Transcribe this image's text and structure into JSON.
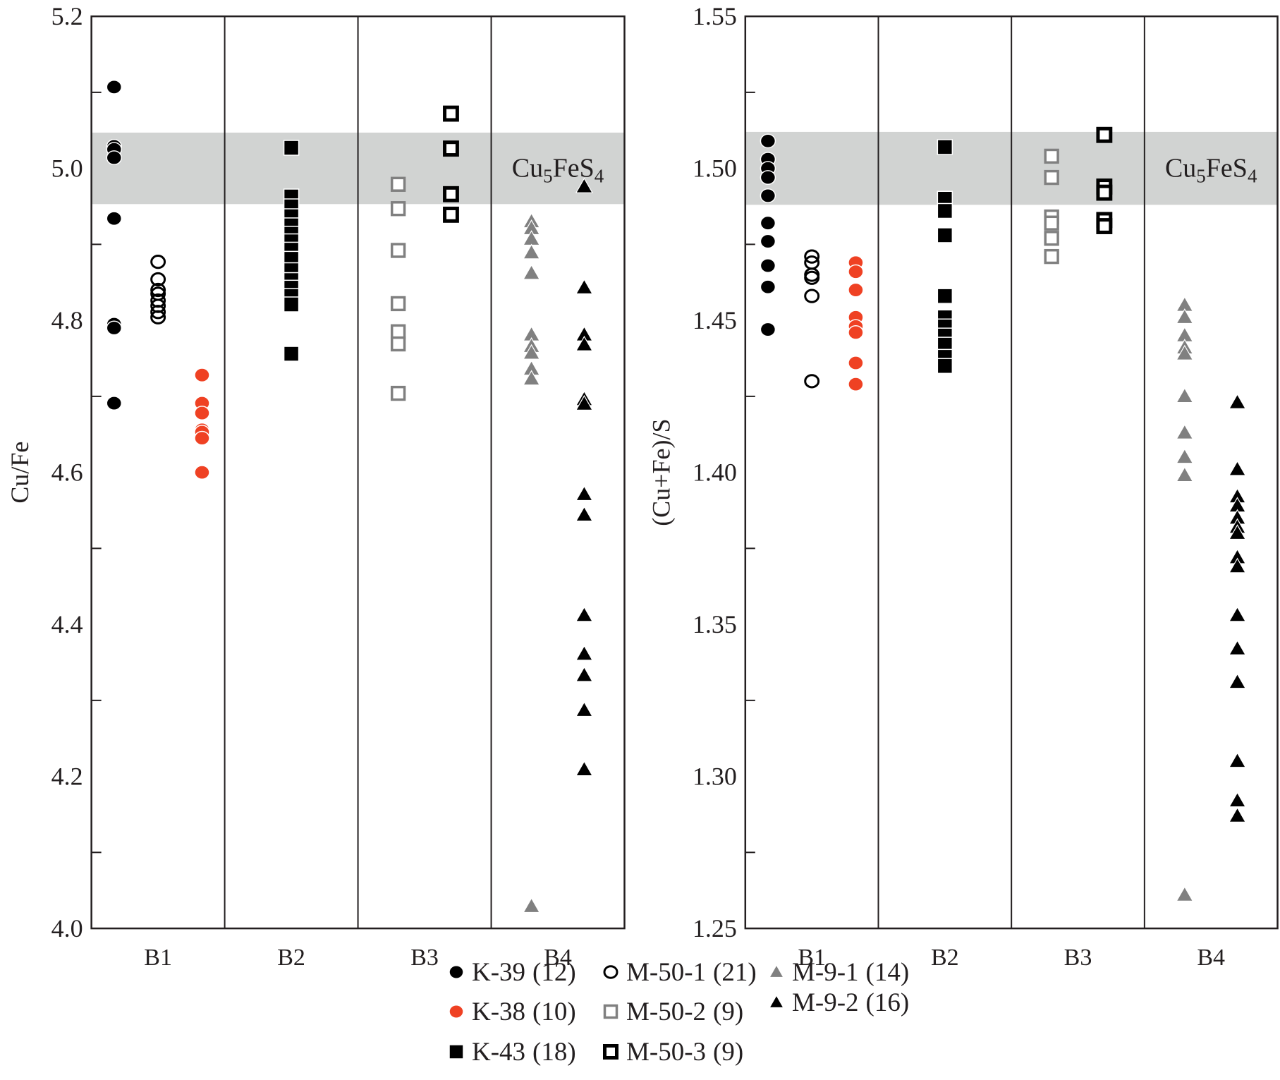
{
  "chart_data": [
    {
      "type": "scatter",
      "panel": "left",
      "ylabel": "Cu/Fe",
      "xlabel": "",
      "ylim": [
        4.0,
        5.2
      ],
      "yticks_labeled": [
        "4.0",
        "4.2",
        "4.4",
        "4.6",
        "4.8",
        "5.0",
        "5.2"
      ],
      "yticks_minor": [
        4.1,
        4.3,
        4.5,
        4.7,
        4.9,
        5.1
      ],
      "categories": [
        "B1",
        "B2",
        "B3",
        "B4"
      ],
      "band": {
        "label_main": "Cu",
        "label_sub1": "5",
        "label_mid": "FeS",
        "label_sub2": "4",
        "from": 4.953,
        "to": 5.047,
        "color": "#d1d3d2"
      },
      "series": [
        {
          "name": "K-39",
          "category": "B1",
          "slot": 0,
          "values": [
            5.107,
            5.029,
            5.025,
            5.014,
            4.934,
            4.795,
            4.79,
            4.691
          ]
        },
        {
          "name": "M-50-1",
          "category": "B1",
          "slot": 1,
          "values": [
            4.877,
            4.854,
            4.84,
            4.835,
            4.826,
            4.819,
            4.811,
            4.804
          ]
        },
        {
          "name": "K-38",
          "category": "B1",
          "slot": 2,
          "values": [
            4.728,
            4.691,
            4.678,
            4.656,
            4.653,
            4.645,
            4.6
          ]
        },
        {
          "name": "K-43",
          "category": "B2",
          "slot": 1,
          "values": [
            5.027,
            4.963,
            4.95,
            4.937,
            4.925,
            4.914,
            4.904,
            4.893,
            4.881,
            4.866,
            4.853,
            4.843,
            4.832,
            4.821,
            4.756
          ]
        },
        {
          "name": "M-50-2",
          "category": "B3",
          "slot": 0,
          "values": [
            4.979,
            4.947,
            4.892,
            4.822,
            4.785,
            4.769,
            4.704
          ]
        },
        {
          "name": "M-50-3",
          "category": "B3",
          "slot": 1,
          "values": [
            5.072,
            5.026,
            4.966,
            4.939
          ]
        },
        {
          "name": "M-9-1",
          "category": "B4",
          "slot": 0,
          "values": [
            4.93,
            4.921,
            4.907,
            4.889,
            4.862,
            4.781,
            4.766,
            4.757,
            4.736,
            4.723,
            4.029
          ]
        },
        {
          "name": "M-9-2",
          "category": "B4",
          "slot": 1,
          "values": [
            4.976,
            4.843,
            4.781,
            4.768,
            4.696,
            4.69,
            4.571,
            4.544,
            4.412,
            4.361,
            4.333,
            4.287,
            4.209
          ]
        }
      ]
    },
    {
      "type": "scatter",
      "panel": "right",
      "ylabel": "(Cu+Fe)/S",
      "xlabel": "",
      "ylim": [
        1.25,
        1.55
      ],
      "yticks_labeled": [
        "1.25",
        "1.30",
        "1.35",
        "1.40",
        "1.45",
        "1.50",
        "1.55"
      ],
      "yticks_minor": [
        1.275,
        1.325,
        1.375,
        1.425,
        1.475,
        1.525
      ],
      "categories": [
        "B1",
        "B2",
        "B3",
        "B4"
      ],
      "band": {
        "label_main": "Cu",
        "label_sub1": "5",
        "label_mid": "FeS",
        "label_sub2": "4",
        "from": 1.488,
        "to": 1.512,
        "color": "#d1d3d2"
      },
      "series": [
        {
          "name": "K-39",
          "category": "B1",
          "slot": 0,
          "values": [
            1.509,
            1.503,
            1.5,
            1.497,
            1.491,
            1.482,
            1.476,
            1.468,
            1.461,
            1.447
          ]
        },
        {
          "name": "M-50-1",
          "category": "B1",
          "slot": 1,
          "values": [
            1.471,
            1.469,
            1.465,
            1.464,
            1.458,
            1.43
          ]
        },
        {
          "name": "K-38",
          "category": "B1",
          "slot": 2,
          "values": [
            1.469,
            1.466,
            1.46,
            1.451,
            1.448,
            1.446,
            1.436,
            1.429
          ]
        },
        {
          "name": "K-43",
          "category": "B2",
          "slot": 1,
          "values": [
            1.507,
            1.49,
            1.486,
            1.478,
            1.458,
            1.451,
            1.448,
            1.445,
            1.442,
            1.438,
            1.435
          ]
        },
        {
          "name": "M-50-2",
          "category": "B3",
          "slot": 0,
          "values": [
            1.504,
            1.497,
            1.484,
            1.482,
            1.477,
            1.471
          ]
        },
        {
          "name": "M-50-3",
          "category": "B3",
          "slot": 1,
          "values": [
            1.511,
            1.494,
            1.492,
            1.483,
            1.481
          ]
        },
        {
          "name": "M-9-1",
          "category": "B4",
          "slot": 0,
          "values": [
            1.455,
            1.451,
            1.445,
            1.441,
            1.439,
            1.425,
            1.413,
            1.405,
            1.399,
            1.261
          ]
        },
        {
          "name": "M-9-2",
          "category": "B4",
          "slot": 1,
          "values": [
            1.423,
            1.401,
            1.392,
            1.389,
            1.385,
            1.382,
            1.38,
            1.372,
            1.369,
            1.353,
            1.342,
            1.331,
            1.305,
            1.292,
            1.287
          ]
        }
      ]
    }
  ],
  "legend": {
    "placement": "bottom-center",
    "items": [
      {
        "name": "K-39",
        "count": "(12)",
        "marker": "filled-circle",
        "color": "#000000"
      },
      {
        "name": "K-38",
        "count": "(10)",
        "marker": "filled-circle",
        "color": "#ef4123"
      },
      {
        "name": "K-43",
        "count": "(18)",
        "marker": "filled-square",
        "color": "#000000"
      },
      {
        "name": "M-50-1",
        "count": "(21)",
        "marker": "open-circle",
        "color": "#000000"
      },
      {
        "name": "M-50-2",
        "count": "(9)",
        "marker": "open-square",
        "color": "#808080"
      },
      {
        "name": "M-50-3",
        "count": "(9)",
        "marker": "open-square-thick",
        "color": "#000000"
      },
      {
        "name": "M-9-1",
        "count": "(14)",
        "marker": "filled-triangle",
        "color": "#808080"
      },
      {
        "name": "M-9-2",
        "count": "(16)",
        "marker": "filled-triangle",
        "color": "#000000"
      }
    ]
  }
}
